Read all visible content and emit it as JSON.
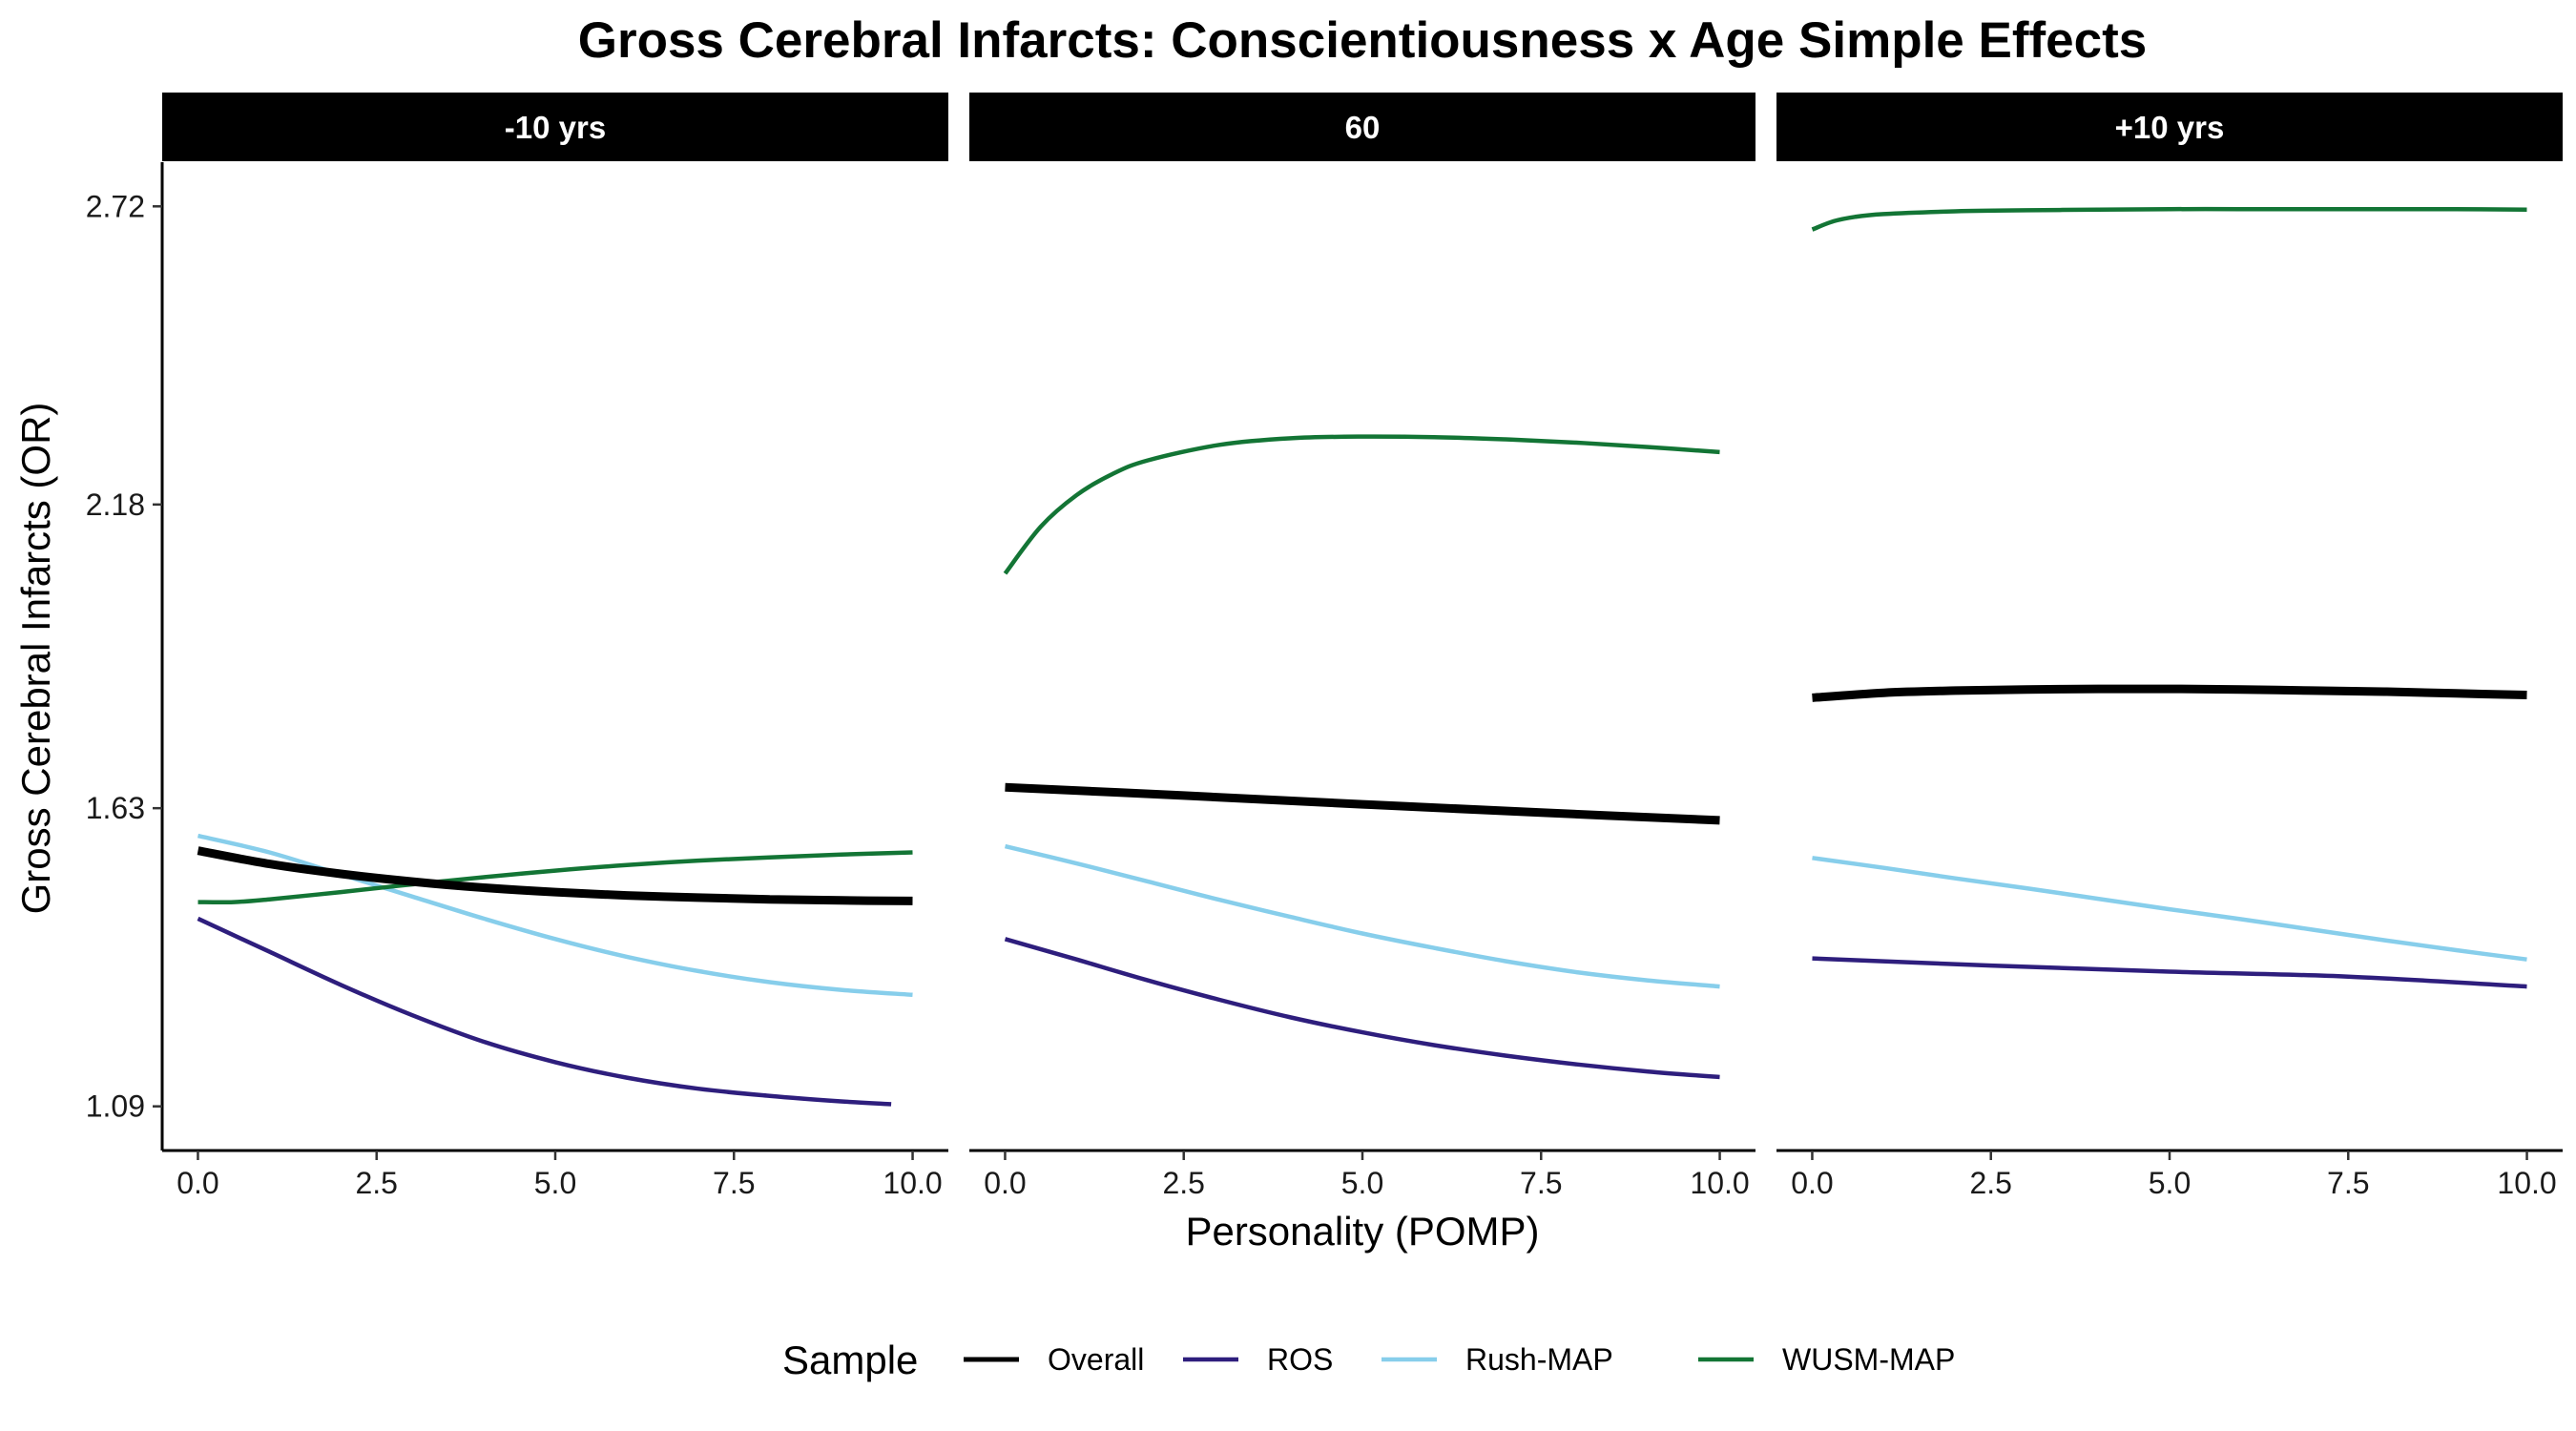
{
  "chart_data": {
    "type": "line",
    "title": "Gross Cerebral Infarcts: Conscientiousness x Age Simple Effects",
    "xlabel": "Personality (POMP)",
    "ylabel": "Gross Cerebral Infarcts (OR)",
    "x_ticks": [
      "0.0",
      "2.5",
      "5.0",
      "7.5",
      "10.0"
    ],
    "x_tick_values": [
      0,
      2.5,
      5,
      7.5,
      10
    ],
    "y_ticks": [
      "1.09",
      "1.63",
      "2.18",
      "2.72"
    ],
    "y_tick_values": [
      1.09,
      1.63,
      2.18,
      2.72
    ],
    "xlim": [
      -0.5,
      10.5
    ],
    "ylim": [
      1.01,
      2.8
    ],
    "grid": false,
    "legend": {
      "title": "Sample",
      "position": "bottom",
      "entries": [
        "Overall",
        "ROS",
        "Rush-MAP",
        "WUSM-MAP"
      ]
    },
    "series_styles": {
      "Overall": {
        "color": "#000000",
        "width": 9
      },
      "ROS": {
        "color": "#2e1e7d",
        "width": 4.5
      },
      "Rush-MAP": {
        "color": "#87ceeb",
        "width": 4.5
      },
      "WUSM-MAP": {
        "color": "#137535",
        "width": 4.5
      }
    },
    "facets": [
      {
        "label": "-10 yrs",
        "series": [
          {
            "name": "Overall",
            "x": [
              0,
              1,
              2,
              3,
              4,
              5,
              6,
              7,
              8,
              9,
              10
            ],
            "y": [
              1.553,
              1.529,
              1.511,
              1.497,
              1.486,
              1.478,
              1.472,
              1.468,
              1.465,
              1.463,
              1.462
            ]
          },
          {
            "name": "ROS",
            "x": [
              0,
              1,
              2,
              3,
              4,
              5,
              6,
              7,
              8,
              9,
              9.7
            ],
            "y": [
              1.43,
              1.37,
              1.31,
              1.255,
              1.207,
              1.17,
              1.142,
              1.122,
              1.109,
              1.099,
              1.094
            ]
          },
          {
            "name": "Rush-MAP",
            "x": [
              0,
              1,
              2,
              3,
              4,
              5,
              6,
              7,
              8,
              9,
              10
            ],
            "y": [
              1.58,
              1.55,
              1.51,
              1.47,
              1.43,
              1.393,
              1.361,
              1.335,
              1.315,
              1.301,
              1.292
            ]
          },
          {
            "name": "WUSM-MAP",
            "x": [
              0,
              0.5,
              1,
              2,
              3,
              4,
              5,
              6,
              7,
              8,
              9,
              10
            ],
            "y": [
              1.46,
              1.46,
              1.465,
              1.478,
              1.492,
              1.505,
              1.517,
              1.527,
              1.535,
              1.541,
              1.546,
              1.55
            ]
          }
        ]
      },
      {
        "label": "60",
        "series": [
          {
            "name": "Overall",
            "x": [
              0,
              2.5,
              5,
              7.5,
              10
            ],
            "y": [
              1.668,
              1.653,
              1.637,
              1.622,
              1.608
            ]
          },
          {
            "name": "ROS",
            "x": [
              0,
              1,
              2,
              3,
              4,
              5,
              6,
              7,
              8,
              9,
              10
            ],
            "y": [
              1.393,
              1.356,
              1.318,
              1.283,
              1.251,
              1.224,
              1.201,
              1.182,
              1.166,
              1.153,
              1.143
            ]
          },
          {
            "name": "Rush-MAP",
            "x": [
              0,
              1,
              2,
              3,
              4,
              5,
              6,
              7,
              8,
              9,
              10
            ],
            "y": [
              1.561,
              1.53,
              1.497,
              1.464,
              1.433,
              1.403,
              1.377,
              1.353,
              1.333,
              1.318,
              1.307
            ]
          },
          {
            "name": "WUSM-MAP",
            "x": [
              0,
              0.5,
              1,
              1.5,
              2,
              3,
              4,
              5,
              6,
              7,
              8,
              9,
              10
            ],
            "y": [
              2.055,
              2.14,
              2.197,
              2.235,
              2.26,
              2.288,
              2.3,
              2.303,
              2.302,
              2.298,
              2.292,
              2.284,
              2.275
            ]
          }
        ]
      },
      {
        "label": "+10 yrs",
        "series": [
          {
            "name": "Overall",
            "x": [
              0,
              1,
              2,
              3,
              4,
              5,
              6,
              7,
              8,
              9,
              10
            ],
            "y": [
              1.83,
              1.839,
              1.843,
              1.845,
              1.846,
              1.846,
              1.845,
              1.843,
              1.841,
              1.838,
              1.835
            ]
          },
          {
            "name": "ROS",
            "x": [
              0,
              2.5,
              5,
              7.5,
              10
            ],
            "y": [
              1.358,
              1.345,
              1.334,
              1.325,
              1.307
            ]
          },
          {
            "name": "Rush-MAP",
            "x": [
              0,
              1,
              2,
              3,
              4,
              5,
              6,
              7,
              8,
              9,
              10
            ],
            "y": [
              1.54,
              1.522,
              1.503,
              1.485,
              1.466,
              1.447,
              1.429,
              1.41,
              1.391,
              1.373,
              1.356
            ]
          },
          {
            "name": "WUSM-MAP",
            "x": [
              0,
              0.3,
              0.6,
              1,
              2,
              3,
              4,
              5,
              6,
              7,
              8,
              9,
              10
            ],
            "y": [
              2.678,
              2.693,
              2.701,
              2.706,
              2.711,
              2.713,
              2.714,
              2.715,
              2.715,
              2.715,
              2.715,
              2.715,
              2.714
            ]
          }
        ]
      }
    ]
  }
}
